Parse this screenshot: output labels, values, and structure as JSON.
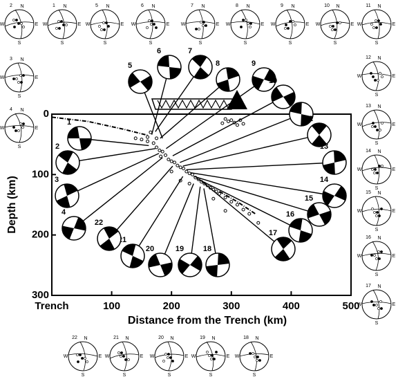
{
  "chart_data": {
    "type": "scatter",
    "x_label": "Distance from the Trench (km)",
    "y_label": "Depth (km)",
    "xlim": [
      0,
      500
    ],
    "ylim": [
      0,
      300
    ],
    "y_inverted": true,
    "xticks": [
      {
        "value": 0,
        "label": "Trench"
      },
      100,
      200,
      300,
      400,
      500
    ],
    "yticks": [
      0,
      100,
      200,
      300
    ],
    "seismicity": {
      "color": "#000",
      "x": [
        290,
        295,
        300,
        305,
        285,
        310,
        320,
        315,
        140,
        150,
        160,
        170,
        175,
        180,
        185,
        182,
        190,
        195,
        200,
        205,
        210,
        215,
        220,
        225,
        230,
        235,
        240,
        245,
        250,
        255,
        260,
        265,
        270,
        275,
        280,
        290,
        300,
        310,
        320,
        330,
        345,
        270,
        230,
        175,
        165,
        160,
        200,
        215,
        290
      ],
      "depth": [
        8,
        12,
        10,
        14,
        15,
        18,
        16,
        10,
        40,
        42,
        45,
        48,
        55,
        60,
        62,
        70,
        68,
        75,
        78,
        80,
        85,
        88,
        90,
        95,
        98,
        100,
        105,
        108,
        112,
        115,
        118,
        122,
        125,
        128,
        132,
        138,
        145,
        150,
        158,
        165,
        180,
        140,
        115,
        40,
        30,
        38,
        95,
        110,
        160
      ]
    },
    "slab_line": {
      "x": [
        0,
        60,
        120,
        160,
        null,
        280,
        310,
        340
      ],
      "depth": [
        5,
        12,
        25,
        35,
        null,
        128,
        145,
        165
      ]
    },
    "events": [
      {
        "label": "1",
        "x": 162,
        "depth": 52
      },
      {
        "label": "2",
        "x": 173,
        "depth": 57
      },
      {
        "label": "3",
        "x": 179,
        "depth": 65
      },
      {
        "label": "4",
        "x": 185,
        "depth": 72
      },
      {
        "label": "5",
        "x": 185,
        "depth": 40
      },
      {
        "label": "6",
        "x": 167,
        "depth": 34
      },
      {
        "label": "7",
        "x": 173,
        "depth": 29
      },
      {
        "label": "8",
        "x": 181,
        "depth": 40
      },
      {
        "label": "9",
        "x": 191,
        "depth": 57
      },
      {
        "label": "10",
        "x": 202,
        "depth": 69
      },
      {
        "label": "11",
        "x": 214,
        "depth": 80
      },
      {
        "label": "12",
        "x": 219,
        "depth": 86
      },
      {
        "label": "13",
        "x": 225,
        "depth": 92
      },
      {
        "label": "14",
        "x": 232,
        "depth": 97
      },
      {
        "label": "15",
        "x": 237,
        "depth": 103
      },
      {
        "label": "16",
        "x": 243,
        "depth": 107
      },
      {
        "label": "17",
        "x": 248,
        "depth": 109
      },
      {
        "label": "18",
        "x": 254,
        "depth": 123
      },
      {
        "label": "19",
        "x": 248,
        "depth": 120
      },
      {
        "label": "20",
        "x": 237,
        "depth": 115
      },
      {
        "label": "21",
        "x": 219,
        "depth": 103
      },
      {
        "label": "22",
        "x": 202,
        "depth": 86
      }
    ]
  },
  "stereonets": {
    "labels": [
      "2",
      "1",
      "5",
      "6",
      "7",
      "8",
      "9",
      "10",
      "11",
      "3",
      "4",
      "12",
      "13",
      "14",
      "15",
      "16",
      "17",
      "22",
      "21",
      "20",
      "19",
      "18"
    ],
    "north": "N",
    "east": "E",
    "south": "S",
    "west": "W"
  }
}
